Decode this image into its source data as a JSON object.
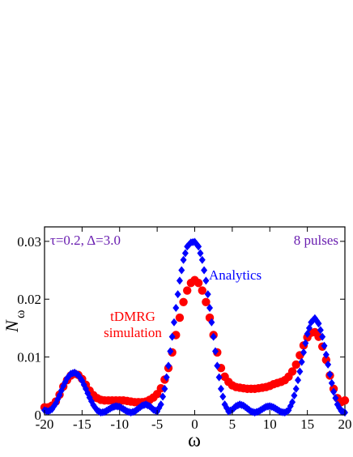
{
  "chart_data": {
    "type": "scatter",
    "xlabel": "ω",
    "ylabel": "N",
    "ylabel_sub": "ω",
    "xlim": [
      -20,
      20
    ],
    "ylim": [
      0,
      0.0325
    ],
    "x_ticks": [
      -20,
      -15,
      -10,
      -5,
      0,
      5,
      10,
      15,
      20
    ],
    "x_tick_labels": [
      "-20",
      "-15",
      "-10",
      "-5",
      "0",
      "5",
      "10",
      "15",
      "20"
    ],
    "y_ticks": [
      0,
      0.01,
      0.02,
      0.03
    ],
    "y_tick_labels": [
      "0",
      "0.01",
      "0.02",
      "0.03"
    ],
    "grid": false,
    "series": [
      {
        "name": "Analytics",
        "marker": "diamond",
        "color": "#0000ff",
        "x": [
          -20,
          -19.5,
          -19,
          -18.5,
          -18,
          -17.5,
          -17,
          -16.5,
          -16,
          -15.5,
          -15,
          -14.5,
          -14,
          -13.5,
          -13,
          -12.5,
          -12,
          -11.5,
          -11,
          -10.5,
          -10,
          -9.5,
          -9,
          -8.5,
          -8,
          -7.5,
          -7,
          -6.5,
          -6,
          -5.5,
          -5,
          -4.5,
          -4,
          -3.5,
          -3,
          -2.5,
          -2,
          -1.5,
          -1,
          -0.5,
          0,
          0.5,
          1,
          1.5,
          2,
          2.5,
          3,
          3.5,
          4,
          4.5,
          5,
          5.5,
          6,
          6.5,
          7,
          7.5,
          8,
          8.5,
          9,
          9.5,
          10,
          10.5,
          11,
          11.5,
          12,
          12.5,
          13,
          13.5,
          14,
          14.5,
          15,
          15.5,
          16,
          16.5,
          17,
          17.5,
          18,
          18.5,
          19,
          19.5,
          20
        ],
        "y": [
          0.0008,
          0.0006,
          0.001,
          0.002,
          0.0034,
          0.005,
          0.0063,
          0.0071,
          0.0073,
          0.0069,
          0.0059,
          0.0045,
          0.003,
          0.0017,
          0.0008,
          0.0004,
          0.0005,
          0.0009,
          0.0013,
          0.0015,
          0.0014,
          0.001,
          0.0006,
          0.0004,
          0.0006,
          0.0011,
          0.0016,
          0.0018,
          0.0015,
          0.0009,
          0.0006,
          0.0018,
          0.0045,
          0.0085,
          0.0135,
          0.0185,
          0.0232,
          0.0268,
          0.0291,
          0.0298,
          0.0299,
          0.0291,
          0.0268,
          0.0232,
          0.0185,
          0.0135,
          0.0085,
          0.0045,
          0.0018,
          0.0006,
          0.0009,
          0.0015,
          0.0018,
          0.0016,
          0.0011,
          0.0006,
          0.0004,
          0.0006,
          0.001,
          0.0014,
          0.0015,
          0.0013,
          0.0009,
          0.0005,
          0.0004,
          0.0008,
          0.0022,
          0.0045,
          0.0075,
          0.0108,
          0.014,
          0.016,
          0.0167,
          0.0158,
          0.0135,
          0.0104,
          0.007,
          0.004,
          0.0018,
          0.0007,
          0.0004
        ]
      },
      {
        "name": "tDMRG simulation",
        "marker": "circle",
        "color": "#ff0000",
        "x": [
          -20,
          -19.5,
          -19,
          -18.5,
          -18,
          -17.5,
          -17,
          -16.5,
          -16,
          -15.5,
          -15,
          -14.5,
          -14,
          -13.5,
          -13,
          -12.5,
          -12,
          -11.5,
          -11,
          -10.5,
          -10,
          -9.5,
          -9,
          -8.5,
          -8,
          -7.5,
          -7,
          -6.5,
          -6,
          -5.5,
          -5,
          -4.5,
          -4,
          -3.5,
          -3,
          -2.5,
          -2,
          -1.5,
          -1,
          -0.5,
          0,
          0.5,
          1,
          1.5,
          2,
          2.5,
          3,
          3.5,
          4,
          4.5,
          5,
          5.5,
          6,
          6.5,
          7,
          7.5,
          8,
          8.5,
          9,
          9.5,
          10,
          10.5,
          11,
          11.5,
          12,
          12.5,
          13,
          13.5,
          14,
          14.5,
          15,
          15.5,
          16,
          16.5,
          17,
          17.5,
          18,
          18.5,
          19,
          19.5,
          20
        ],
        "y": [
          0.0013,
          0.0013,
          0.0016,
          0.0023,
          0.0035,
          0.0049,
          0.006,
          0.0068,
          0.0071,
          0.0069,
          0.0062,
          0.0052,
          0.0042,
          0.0034,
          0.0029,
          0.0026,
          0.0025,
          0.0025,
          0.0025,
          0.0025,
          0.0025,
          0.0025,
          0.0024,
          0.0023,
          0.0022,
          0.0022,
          0.0022,
          0.0023,
          0.0026,
          0.003,
          0.0036,
          0.0046,
          0.0061,
          0.0081,
          0.0108,
          0.0138,
          0.0168,
          0.0195,
          0.0215,
          0.0228,
          0.0233,
          0.0228,
          0.0215,
          0.0195,
          0.0168,
          0.0138,
          0.0108,
          0.0081,
          0.0066,
          0.0057,
          0.0051,
          0.0048,
          0.0047,
          0.0046,
          0.0045,
          0.0045,
          0.0045,
          0.0046,
          0.0047,
          0.0048,
          0.005,
          0.0053,
          0.0055,
          0.0057,
          0.006,
          0.0066,
          0.0075,
          0.0087,
          0.0103,
          0.012,
          0.0134,
          0.0142,
          0.0143,
          0.0135,
          0.0118,
          0.0095,
          0.0068,
          0.0045,
          0.0029,
          0.0022,
          0.0025
        ]
      }
    ],
    "annotations": [
      {
        "text": "τ=0.2, Δ=3.0",
        "color": "#6a1fb0"
      },
      {
        "text": "8 pulses",
        "color": "#6a1fb0"
      },
      {
        "text": "Analytics",
        "color": "#0000ff"
      },
      {
        "text": "tDMRG",
        "color": "#ff0000"
      },
      {
        "text": "simulation",
        "color": "#ff0000"
      }
    ]
  }
}
